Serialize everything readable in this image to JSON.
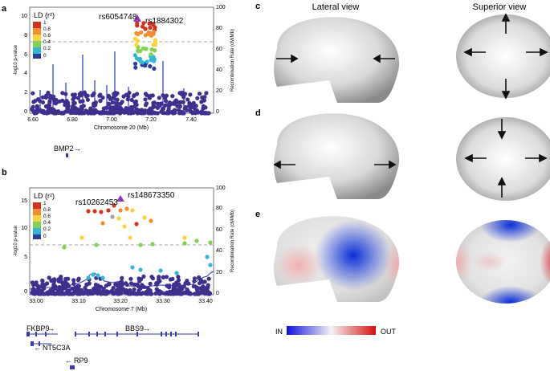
{
  "panels": {
    "a": {
      "label": "a",
      "snp1": "rs6054748",
      "snp2": "rs1884302",
      "x_axis_label": "Chromosome 20 (Mb)",
      "x_ticks": [
        "6.60",
        "6.80",
        "7.00",
        "7.20",
        "7.40"
      ],
      "y_ticks": [
        "0",
        "2",
        "4",
        "6",
        "8",
        "10"
      ],
      "y2_ticks": [
        "0",
        "20",
        "40",
        "60",
        "80",
        "100"
      ],
      "gene": "BMP2"
    },
    "b": {
      "label": "b",
      "snp1": "rs10262453",
      "snp2": "rs148673350",
      "x_axis_label": "Chromosome 7 (Mb)",
      "x_ticks": [
        "33.00",
        "33.10",
        "33.20",
        "33.30",
        "33.40"
      ],
      "y_ticks": [
        "0",
        "5",
        "10",
        "15"
      ],
      "y2_ticks": [
        "0",
        "20",
        "40",
        "60",
        "80",
        "100"
      ],
      "genes": [
        "FKBP9",
        "BBS9",
        "NT5C3A",
        "RP9"
      ]
    },
    "c": {
      "label": "c"
    },
    "d": {
      "label": "d"
    },
    "e": {
      "label": "e"
    }
  },
  "legend": {
    "title": "LD (r²)",
    "ticks": [
      "1",
      "0.8",
      "0.6",
      "0.4",
      "0.2",
      "0"
    ],
    "colors": [
      "#d7301f",
      "#f58d2f",
      "#f9d33b",
      "#7fd34e",
      "#30b7d6",
      "#2a3d9c"
    ]
  },
  "axis_titles": {
    "y_left": "-log10 p-value",
    "y_right": "Recombination Rate (cM/Mb)"
  },
  "view_titles": {
    "lateral": "Lateral view",
    "superior": "Superior view"
  },
  "colorbar": {
    "left": "IN",
    "right": "OUT"
  },
  "gene_arrows": {
    "right": "→",
    "left": "←"
  }
}
